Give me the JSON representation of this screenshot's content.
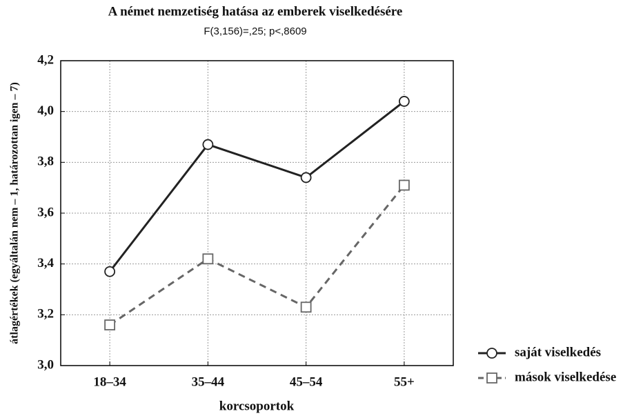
{
  "chart_data": {
    "type": "line",
    "title": "A német nemzetiség hatása az emberek viselkedésére",
    "subtitle": "F(3,156)=,25; p<,8609",
    "x_label": "korcsoportok",
    "y_label": "átlagértékek (egyáltalán nem – 1, határozottan igen – 7)",
    "categories": [
      "18–34",
      "35–44",
      "45–54",
      "55+"
    ],
    "series": [
      {
        "name": "saját viselkedés",
        "color": "#222222",
        "line_style": "solid",
        "marker": "circle",
        "values": [
          3.37,
          3.87,
          3.74,
          4.04
        ]
      },
      {
        "name": "mások viselkedése",
        "color": "#666666",
        "line_style": "dashed",
        "marker": "square",
        "values": [
          3.16,
          3.42,
          3.23,
          3.71
        ]
      }
    ],
    "ylim": [
      3.0,
      4.2
    ],
    "yticks": [
      {
        "value": 3.0,
        "label": "3,0"
      },
      {
        "value": 3.2,
        "label": "3,2"
      },
      {
        "value": 3.4,
        "label": "3,4"
      },
      {
        "value": 3.6,
        "label": "3,6"
      },
      {
        "value": 3.8,
        "label": "3,8"
      },
      {
        "value": 4.0,
        "label": "4,0"
      },
      {
        "value": 4.2,
        "label": "4,2"
      }
    ],
    "grid": true,
    "legend": "right"
  }
}
